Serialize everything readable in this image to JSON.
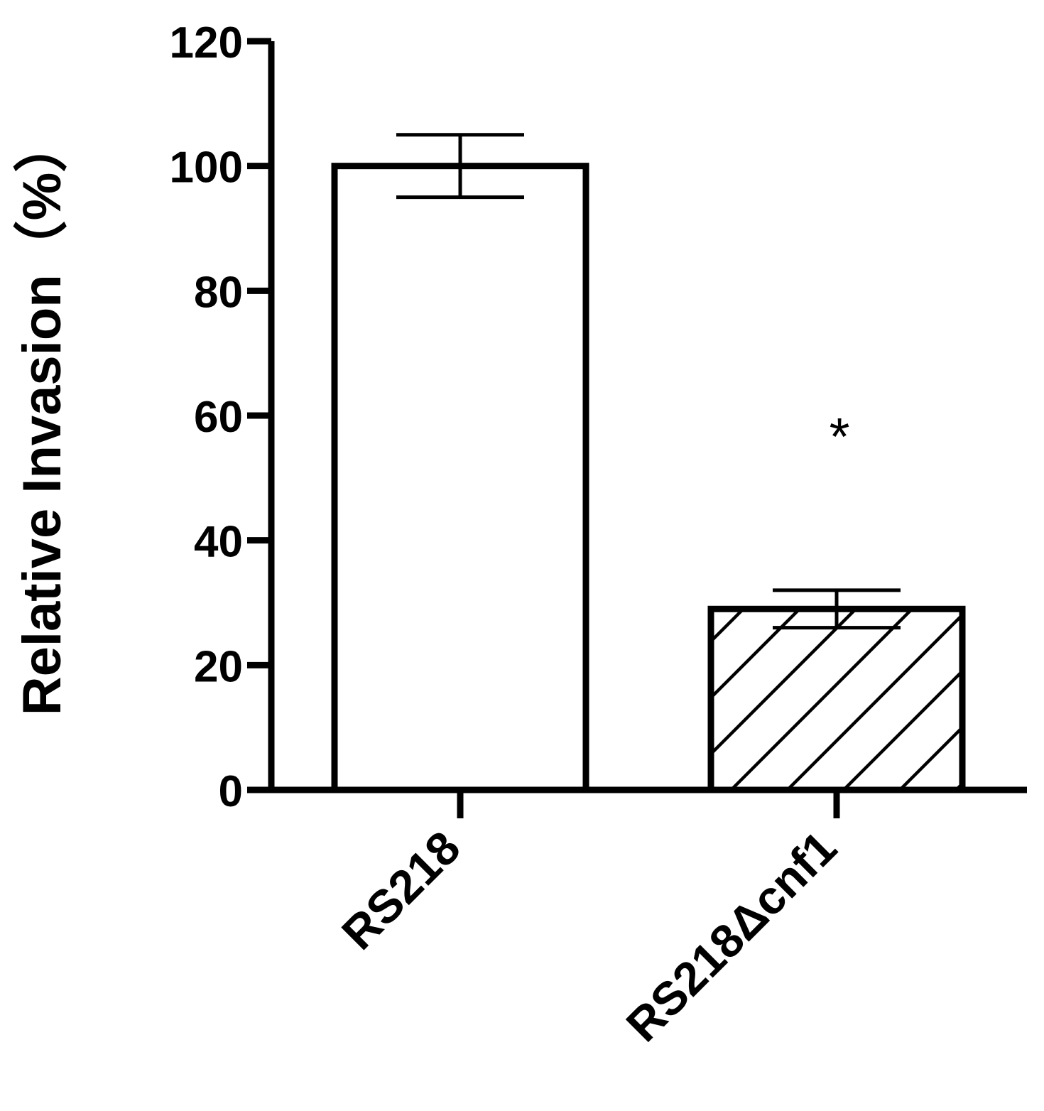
{
  "chart_data": {
    "type": "bar",
    "ylabel": "Relative Invasion（%）",
    "ylim": [
      0,
      120
    ],
    "yticks": [
      0,
      20,
      40,
      60,
      80,
      100,
      120
    ],
    "categories": [
      "RS218",
      "RS218Δcnf1"
    ],
    "values": [
      100,
      29
    ],
    "errors": [
      5,
      3
    ],
    "fills": [
      "none",
      "diagonal-hatch"
    ],
    "annotations": [
      {
        "category_index": 1,
        "text": "*"
      }
    ],
    "grid": false,
    "legend": "none"
  }
}
